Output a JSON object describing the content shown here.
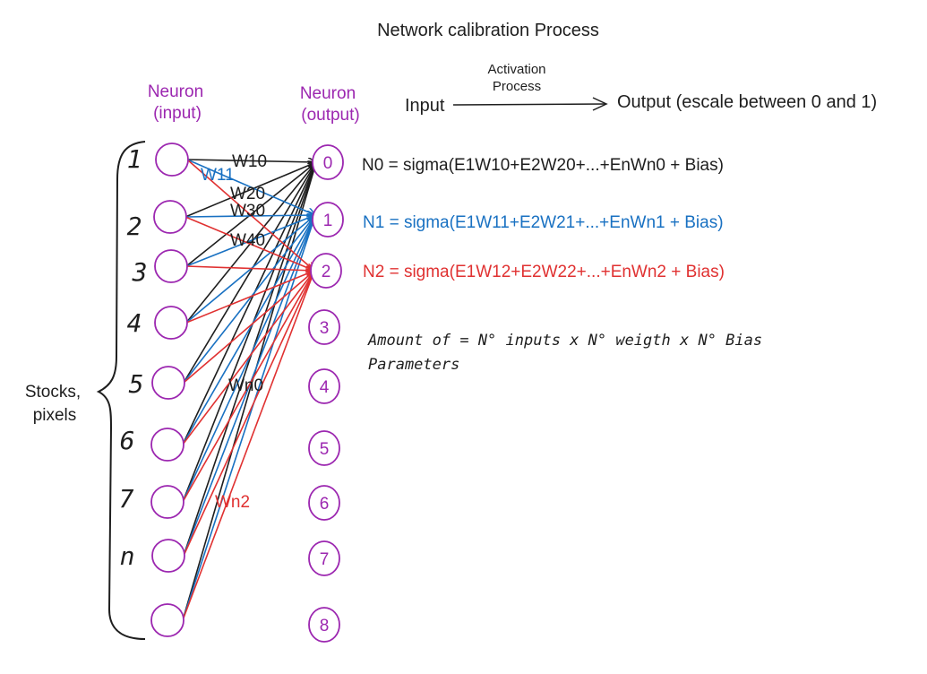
{
  "title": "Network calibration Process",
  "activation": {
    "label_line1": "Activation",
    "label_line2": "Process",
    "input": "Input",
    "output": "Output (escale between 0 and 1)"
  },
  "headers": {
    "input_line1": "Neuron",
    "input_line2": "(input)",
    "output_line1": "Neuron",
    "output_line2": "(output)"
  },
  "side_label": {
    "line1": "Stocks,",
    "line2": "pixels"
  },
  "input_indices": [
    "1",
    "2",
    "3",
    "4",
    "5",
    "6",
    "7",
    "n",
    ""
  ],
  "output_nodes": [
    "0",
    "1",
    "2",
    "3",
    "4",
    "5",
    "6",
    "7",
    "8"
  ],
  "weight_labels": {
    "w10": "W10",
    "w11": "W11",
    "w20": "W20",
    "w30": "W30",
    "w40": "W40",
    "wn0": "Wn0",
    "wn2": "Wn2"
  },
  "formulas": {
    "n0": "N0 = sigma(E1W10+E2W20+...+EnWn0 + Bias)",
    "n1": "N1 = sigma(E1W11+E2W21+...+EnWn1 + Bias)",
    "n2": "N2 = sigma(E1W12+E2W22+...+EnWn2 + Bias)"
  },
  "amount": {
    "line1": "Amount of = N° inputs x N° weigth x N° Bias",
    "line2": "Parameters"
  },
  "colors": {
    "purple": "#9c27b0",
    "black": "#1e1e1e",
    "blue": "#1971c2",
    "red": "#e03131"
  }
}
